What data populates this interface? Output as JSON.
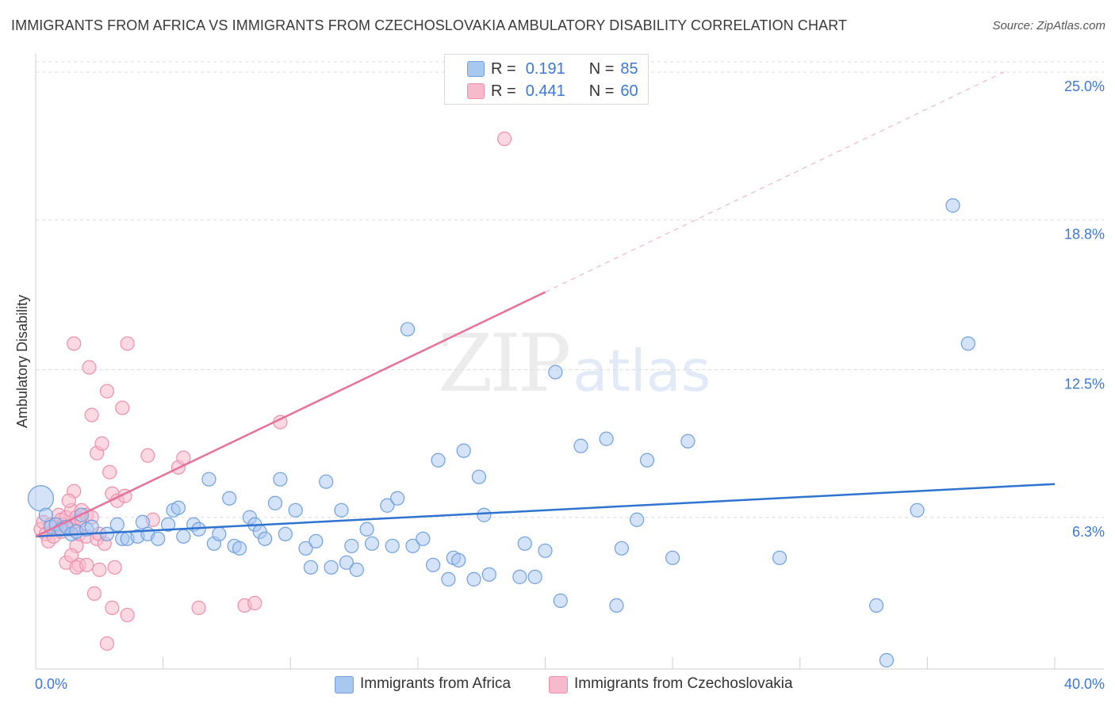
{
  "header": {
    "title": "IMMIGRANTS FROM AFRICA VS IMMIGRANTS FROM CZECHOSLOVAKIA AMBULATORY DISABILITY CORRELATION CHART",
    "source": "Source: ZipAtlas.com"
  },
  "watermark": {
    "zip": "ZIP",
    "atlas": "atlas"
  },
  "legend": {
    "r_label": "R =",
    "n_label": "N =",
    "africa": {
      "r": "0.191",
      "n": "85"
    },
    "czech": {
      "r": "0.441",
      "n": "60"
    }
  },
  "colors": {
    "africa_fill": "#a9c8f0",
    "africa_stroke": "#6fa0e0",
    "africa_line": "#2f73d0",
    "czech_fill": "#f7b9cc",
    "czech_stroke": "#ee8fac",
    "czech_line": "#e8709a",
    "tick_label": "#3b78d8"
  },
  "chart_data": {
    "type": "scatter",
    "title": "IMMIGRANTS FROM AFRICA VS IMMIGRANTS FROM CZECHOSLOVAKIA AMBULATORY DISABILITY CORRELATION CHART",
    "xlabel": "",
    "ylabel": "Ambulatory Disability",
    "xlim": [
      0,
      40
    ],
    "ylim": [
      0,
      25.7
    ],
    "x_tick_labels": [
      "0.0%",
      "40.0%"
    ],
    "y_ticks": [
      6.3,
      12.5,
      18.8,
      25.0
    ],
    "y_tick_labels": [
      "6.3%",
      "12.5%",
      "18.8%",
      "25.0%"
    ],
    "grid": true,
    "legend_position": "top-center",
    "series": [
      {
        "name": "Immigrants from Africa",
        "r": 0.191,
        "n": 85,
        "trend": {
          "x0": 0,
          "y0": 5.5,
          "x1": 40,
          "y1": 7.7,
          "solid_until": 40
        },
        "points": [
          [
            0.2,
            7.1
          ],
          [
            0.4,
            6.4
          ],
          [
            0.6,
            5.9
          ],
          [
            0.8,
            6.0
          ],
          [
            1.0,
            5.8
          ],
          [
            1.2,
            5.9
          ],
          [
            1.4,
            5.6
          ],
          [
            1.8,
            6.4
          ],
          [
            1.6,
            5.7
          ],
          [
            2.0,
            5.8
          ],
          [
            2.2,
            5.9
          ],
          [
            2.8,
            5.6
          ],
          [
            3.2,
            6.0
          ],
          [
            3.4,
            5.4
          ],
          [
            3.6,
            5.4
          ],
          [
            4.0,
            5.5
          ],
          [
            4.2,
            6.1
          ],
          [
            4.4,
            5.6
          ],
          [
            4.8,
            5.4
          ],
          [
            5.2,
            6.0
          ],
          [
            5.4,
            6.6
          ],
          [
            5.6,
            6.7
          ],
          [
            5.8,
            5.5
          ],
          [
            6.2,
            6.0
          ],
          [
            6.4,
            5.8
          ],
          [
            6.8,
            7.9
          ],
          [
            7.0,
            5.2
          ],
          [
            7.2,
            5.6
          ],
          [
            7.6,
            7.1
          ],
          [
            7.8,
            5.1
          ],
          [
            8.0,
            5.0
          ],
          [
            8.4,
            6.3
          ],
          [
            8.6,
            6.0
          ],
          [
            8.8,
            5.7
          ],
          [
            9.0,
            5.4
          ],
          [
            9.4,
            6.9
          ],
          [
            9.6,
            7.9
          ],
          [
            9.8,
            5.6
          ],
          [
            10.2,
            6.6
          ],
          [
            10.6,
            5.0
          ],
          [
            10.8,
            4.2
          ],
          [
            11.0,
            5.3
          ],
          [
            11.4,
            7.8
          ],
          [
            11.6,
            4.2
          ],
          [
            12.0,
            6.6
          ],
          [
            12.2,
            4.4
          ],
          [
            12.4,
            5.1
          ],
          [
            12.6,
            4.1
          ],
          [
            13.0,
            5.8
          ],
          [
            13.2,
            5.2
          ],
          [
            13.8,
            6.8
          ],
          [
            14.0,
            5.1
          ],
          [
            14.2,
            7.1
          ],
          [
            14.6,
            14.2
          ],
          [
            14.8,
            5.1
          ],
          [
            15.2,
            5.4
          ],
          [
            15.6,
            4.3
          ],
          [
            15.8,
            8.7
          ],
          [
            16.2,
            3.7
          ],
          [
            16.4,
            4.6
          ],
          [
            16.6,
            4.5
          ],
          [
            16.8,
            9.1
          ],
          [
            17.2,
            3.7
          ],
          [
            17.4,
            8.0
          ],
          [
            17.6,
            6.4
          ],
          [
            17.8,
            3.9
          ],
          [
            19.0,
            3.8
          ],
          [
            19.2,
            5.2
          ],
          [
            19.6,
            3.8
          ],
          [
            20.0,
            4.9
          ],
          [
            20.4,
            12.4
          ],
          [
            20.6,
            2.8
          ],
          [
            21.4,
            9.3
          ],
          [
            22.4,
            9.6
          ],
          [
            22.8,
            2.6
          ],
          [
            23.0,
            5.0
          ],
          [
            23.6,
            6.2
          ],
          [
            24.0,
            8.7
          ],
          [
            25.0,
            4.6
          ],
          [
            25.6,
            9.5
          ],
          [
            29.2,
            4.6
          ],
          [
            33.0,
            2.6
          ],
          [
            33.4,
            0.3
          ],
          [
            34.6,
            6.6
          ],
          [
            36.0,
            19.4
          ],
          [
            36.6,
            13.6
          ]
        ]
      },
      {
        "name": "Immigrants from Czechoslovakia",
        "r": 0.441,
        "n": 60,
        "trend": {
          "x0": 0,
          "y0": 5.5,
          "x1": 38,
          "y1": 25.0,
          "solid_until": 20
        },
        "points": [
          [
            0.2,
            5.8
          ],
          [
            0.3,
            6.1
          ],
          [
            0.4,
            5.6
          ],
          [
            0.5,
            5.3
          ],
          [
            0.6,
            6.0
          ],
          [
            0.7,
            5.5
          ],
          [
            0.8,
            5.9
          ],
          [
            0.9,
            6.4
          ],
          [
            1.0,
            6.2
          ],
          [
            1.0,
            5.7
          ],
          [
            1.1,
            6.0
          ],
          [
            1.2,
            6.3
          ],
          [
            1.3,
            5.8
          ],
          [
            1.4,
            6.6
          ],
          [
            1.5,
            5.9
          ],
          [
            1.6,
            6.3
          ],
          [
            1.6,
            5.1
          ],
          [
            1.7,
            5.6
          ],
          [
            1.8,
            6.2
          ],
          [
            1.2,
            4.4
          ],
          [
            1.4,
            4.7
          ],
          [
            1.5,
            7.4
          ],
          [
            1.3,
            7.0
          ],
          [
            1.8,
            6.6
          ],
          [
            2.0,
            6.4
          ],
          [
            2.0,
            5.5
          ],
          [
            2.2,
            6.3
          ],
          [
            2.4,
            5.4
          ],
          [
            2.5,
            5.6
          ],
          [
            1.7,
            4.3
          ],
          [
            1.5,
            13.6
          ],
          [
            1.6,
            4.2
          ],
          [
            2.0,
            4.3
          ],
          [
            2.1,
            12.6
          ],
          [
            2.2,
            10.6
          ],
          [
            2.3,
            3.1
          ],
          [
            2.4,
            9.0
          ],
          [
            2.5,
            4.1
          ],
          [
            2.6,
            9.4
          ],
          [
            2.7,
            5.2
          ],
          [
            2.8,
            11.6
          ],
          [
            2.9,
            8.2
          ],
          [
            3.0,
            7.3
          ],
          [
            3.1,
            4.2
          ],
          [
            3.2,
            7.0
          ],
          [
            3.4,
            10.9
          ],
          [
            3.5,
            7.2
          ],
          [
            3.6,
            13.6
          ],
          [
            3.0,
            2.5
          ],
          [
            2.8,
            1.0
          ],
          [
            3.6,
            2.2
          ],
          [
            4.4,
            8.9
          ],
          [
            4.6,
            6.2
          ],
          [
            5.6,
            8.4
          ],
          [
            5.8,
            8.8
          ],
          [
            6.4,
            2.5
          ],
          [
            8.2,
            2.6
          ],
          [
            8.6,
            2.7
          ],
          [
            9.6,
            10.3
          ],
          [
            18.4,
            22.2
          ]
        ]
      }
    ]
  },
  "bottom_legend": {
    "africa_label": "Immigrants from Africa",
    "czech_label": "Immigrants from Czechoslovakia"
  }
}
